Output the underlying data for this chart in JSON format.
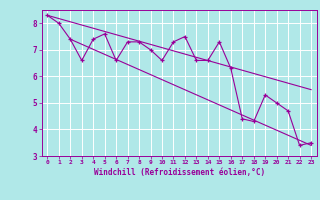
{
  "bg_color": "#b0e8e8",
  "grid_color": "#ffffff",
  "line_color": "#990099",
  "xlim": [
    -0.5,
    23.5
  ],
  "ylim": [
    3,
    8.5
  ],
  "yticks": [
    3,
    4,
    5,
    6,
    7,
    8
  ],
  "xticks": [
    0,
    1,
    2,
    3,
    4,
    5,
    6,
    7,
    8,
    9,
    10,
    11,
    12,
    13,
    14,
    15,
    16,
    17,
    18,
    19,
    20,
    21,
    22,
    23
  ],
  "xlabel": "Windchill (Refroidissement éolien,°C)",
  "series": [
    [
      0,
      8.3
    ],
    [
      1,
      8.0
    ],
    [
      2,
      7.4
    ],
    [
      3,
      6.6
    ],
    [
      4,
      7.4
    ],
    [
      5,
      7.6
    ],
    [
      6,
      6.6
    ],
    [
      7,
      7.3
    ],
    [
      8,
      7.3
    ],
    [
      9,
      7.0
    ],
    [
      10,
      6.6
    ],
    [
      11,
      7.3
    ],
    [
      12,
      7.5
    ],
    [
      13,
      6.6
    ],
    [
      14,
      6.6
    ],
    [
      15,
      7.3
    ],
    [
      16,
      6.3
    ],
    [
      17,
      4.4
    ],
    [
      18,
      4.3
    ],
    [
      19,
      5.3
    ],
    [
      20,
      5.0
    ],
    [
      21,
      4.7
    ],
    [
      22,
      3.4
    ],
    [
      23,
      3.5
    ]
  ],
  "upper_line": [
    [
      0,
      8.3
    ],
    [
      23,
      5.5
    ]
  ],
  "lower_line": [
    [
      2,
      7.4
    ],
    [
      23,
      3.4
    ]
  ]
}
